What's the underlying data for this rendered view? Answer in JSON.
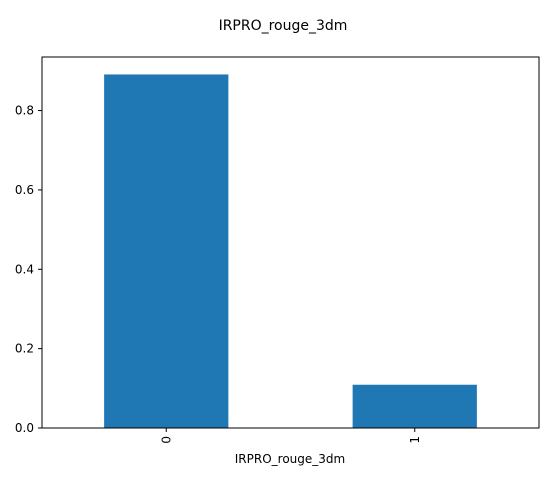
{
  "chart_data": {
    "type": "bar",
    "title": "IRPRO_rouge_3dm",
    "xlabel": "IRPRO_rouge_3dm",
    "ylabel": "",
    "categories": [
      "0",
      "1"
    ],
    "values": [
      0.891,
      0.109
    ],
    "ylim": [
      0,
      0.935
    ],
    "yticks": [
      "0.0",
      "0.2",
      "0.4",
      "0.6",
      "0.8"
    ],
    "ytick_values": [
      0.0,
      0.2,
      0.4,
      0.6,
      0.8
    ],
    "bar_color": "#1f77b4",
    "grid": false,
    "legend": "none"
  }
}
